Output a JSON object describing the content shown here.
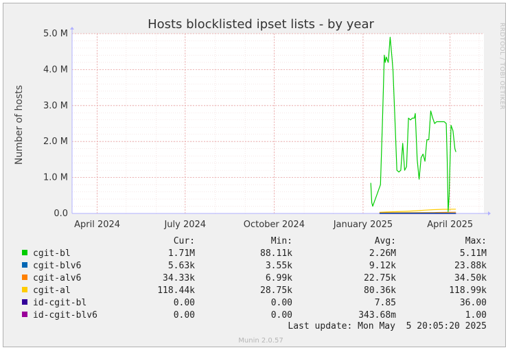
{
  "chart_data": {
    "type": "line",
    "title": "Hosts blocklisted ipset lists - by year",
    "ylabel": "Number of hosts",
    "watermark": "RRDTOOL / TOBI OETIKER",
    "ylim": [
      0,
      5000000
    ],
    "y_ticks": [
      {
        "value": 0,
        "label": "0.0"
      },
      {
        "value": 1000000,
        "label": "1.0 M"
      },
      {
        "value": 2000000,
        "label": "2.0 M"
      },
      {
        "value": 3000000,
        "label": "3.0 M"
      },
      {
        "value": 4000000,
        "label": "4.0 M"
      },
      {
        "value": 5000000,
        "label": "5.0 M"
      }
    ],
    "x_range": [
      "2024-03-06",
      "2025-05-06"
    ],
    "x_ticks": [
      {
        "date": "2024-04-01",
        "label": "April 2024"
      },
      {
        "date": "2024-07-01",
        "label": "July 2024"
      },
      {
        "date": "2024-10-01",
        "label": "October 2024"
      },
      {
        "date": "2025-01-01",
        "label": "January 2025"
      },
      {
        "date": "2025-04-01",
        "label": "April 2025"
      }
    ],
    "grid": true,
    "colors": {
      "cgit-bl": "#00cc00",
      "cgit-blv6": "#0066b3",
      "cgit-alv6": "#ff8000",
      "cgit-al": "#ffcc00",
      "id-cgit-bl": "#330099",
      "id-cgit-blv6": "#990099",
      "grid": "#e8a0a0",
      "plot_bg": "#ffffff",
      "frame_bg": "#f0f0f0"
    },
    "series": [
      {
        "name": "cgit-bl",
        "points": [
          [
            "2025-01-09",
            850000
          ],
          [
            "2025-01-10",
            300000
          ],
          [
            "2025-01-11",
            200000
          ],
          [
            "2025-01-13",
            350000
          ],
          [
            "2025-01-15",
            500000
          ],
          [
            "2025-01-17",
            650000
          ],
          [
            "2025-01-19",
            800000
          ],
          [
            "2025-01-21",
            2500000
          ],
          [
            "2025-01-23",
            4400000
          ],
          [
            "2025-01-24",
            4200000
          ],
          [
            "2025-01-25",
            4350000
          ],
          [
            "2025-01-27",
            4200000
          ],
          [
            "2025-01-29",
            4900000
          ],
          [
            "2025-01-31",
            4300000
          ],
          [
            "2025-02-01",
            3950000
          ],
          [
            "2025-02-03",
            2600000
          ],
          [
            "2025-02-05",
            1200000
          ],
          [
            "2025-02-07",
            1150000
          ],
          [
            "2025-02-09",
            1200000
          ],
          [
            "2025-02-11",
            1950000
          ],
          [
            "2025-02-13",
            1200000
          ],
          [
            "2025-02-15",
            1300000
          ],
          [
            "2025-02-17",
            2650000
          ],
          [
            "2025-02-19",
            2600000
          ],
          [
            "2025-02-21",
            2650000
          ],
          [
            "2025-02-23",
            2650000
          ],
          [
            "2025-02-24",
            2780000
          ],
          [
            "2025-02-26",
            1500000
          ],
          [
            "2025-02-28",
            950000
          ],
          [
            "2025-03-02",
            1550000
          ],
          [
            "2025-03-04",
            1650000
          ],
          [
            "2025-03-06",
            1450000
          ],
          [
            "2025-03-08",
            2050000
          ],
          [
            "2025-03-10",
            2050000
          ],
          [
            "2025-03-12",
            2850000
          ],
          [
            "2025-03-14",
            2650000
          ],
          [
            "2025-03-16",
            2500000
          ],
          [
            "2025-03-18",
            2550000
          ],
          [
            "2025-03-20",
            2550000
          ],
          [
            "2025-03-22",
            2550000
          ],
          [
            "2025-03-24",
            2550000
          ],
          [
            "2025-03-26",
            2550000
          ],
          [
            "2025-03-28",
            2500000
          ],
          [
            "2025-03-29",
            1500000
          ],
          [
            "2025-03-30",
            50000
          ],
          [
            "2025-03-31",
            500000
          ],
          [
            "2025-04-02",
            2450000
          ],
          [
            "2025-04-04",
            2300000
          ],
          [
            "2025-04-06",
            1800000
          ],
          [
            "2025-04-07",
            1710000
          ]
        ]
      },
      {
        "name": "cgit-blv6",
        "points": [
          [
            "2025-01-18",
            8000
          ],
          [
            "2025-02-15",
            9000
          ],
          [
            "2025-03-15",
            10000
          ],
          [
            "2025-04-07",
            5630
          ]
        ]
      },
      {
        "name": "cgit-alv6",
        "points": [
          [
            "2025-01-18",
            20000
          ],
          [
            "2025-02-15",
            22000
          ],
          [
            "2025-03-15",
            25000
          ],
          [
            "2025-04-07",
            34330
          ]
        ]
      },
      {
        "name": "cgit-al",
        "points": [
          [
            "2025-01-18",
            30000
          ],
          [
            "2025-01-25",
            40000
          ],
          [
            "2025-02-05",
            50000
          ],
          [
            "2025-02-15",
            60000
          ],
          [
            "2025-02-25",
            75000
          ],
          [
            "2025-03-05",
            90000
          ],
          [
            "2025-03-15",
            105000
          ],
          [
            "2025-03-25",
            115000
          ],
          [
            "2025-04-07",
            118440
          ]
        ]
      },
      {
        "name": "id-cgit-bl",
        "points": [
          [
            "2025-01-18",
            0
          ],
          [
            "2025-04-07",
            0
          ]
        ]
      },
      {
        "name": "id-cgit-blv6",
        "points": [
          [
            "2025-01-18",
            0
          ],
          [
            "2025-04-07",
            0
          ]
        ]
      }
    ],
    "legend": {
      "headers": {
        "cur": "Cur:",
        "min": "Min:",
        "avg": "Avg:",
        "max": "Max:"
      },
      "rows": [
        {
          "name": "cgit-bl",
          "cur": "1.71M",
          "min": "88.11k",
          "avg": "2.26M",
          "max": "5.11M"
        },
        {
          "name": "cgit-blv6",
          "cur": "5.63k",
          "min": "3.55k",
          "avg": "9.12k",
          "max": "23.88k"
        },
        {
          "name": "cgit-alv6",
          "cur": "34.33k",
          "min": "6.99k",
          "avg": "22.75k",
          "max": "34.50k"
        },
        {
          "name": "cgit-al",
          "cur": "118.44k",
          "min": "28.75k",
          "avg": "80.36k",
          "max": "118.99k"
        },
        {
          "name": "id-cgit-bl",
          "cur": "0.00",
          "min": "0.00",
          "avg": "7.85",
          "max": "36.00"
        },
        {
          "name": "id-cgit-blv6",
          "cur": "0.00",
          "min": "0.00",
          "avg": "343.68m",
          "max": "1.00"
        }
      ]
    },
    "last_update": "Last update: Mon May  5 20:05:20 2025",
    "footer": "Munin 2.0.57"
  }
}
